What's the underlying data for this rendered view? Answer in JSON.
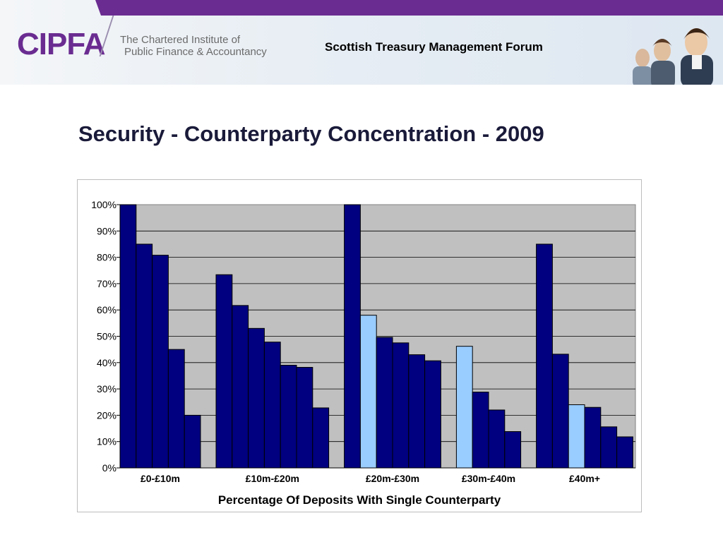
{
  "header": {
    "logo": "CIPFA",
    "org_line1": "The Chartered Institute of",
    "org_line2": "Public Finance & Accountancy",
    "forum_title": "Scottish Treasury Management Forum"
  },
  "slide": {
    "title": "Security  -  Counterparty Concentration - 2009"
  },
  "colors": {
    "brand_purple": "#6a2c91",
    "bar_dark": "#000080",
    "bar_light": "#99ccff",
    "plot_bg": "#c0c0c0"
  },
  "chart_data": {
    "type": "bar",
    "title": "",
    "xlabel": "Percentage Of Deposits With Single Counterparty",
    "ylabel": "",
    "ylim": [
      0,
      100
    ],
    "yticks": [
      "0%",
      "10%",
      "20%",
      "30%",
      "40%",
      "50%",
      "60%",
      "70%",
      "80%",
      "90%",
      "100%"
    ],
    "grid": true,
    "groups": [
      {
        "label": "£0-£10m",
        "values": [
          100,
          85,
          80.8,
          45,
          20
        ],
        "highlight": []
      },
      {
        "label": "£10m-£20m",
        "values": [
          73.4,
          61.7,
          53,
          47.8,
          39,
          38.2,
          22.8
        ],
        "highlight": []
      },
      {
        "label": "£20m-£30m",
        "values": [
          100,
          58,
          49.6,
          47.5,
          43,
          40.7
        ],
        "highlight": [
          1
        ]
      },
      {
        "label": "£30m-£40m",
        "values": [
          46.2,
          28.8,
          22,
          13.8
        ],
        "highlight": [
          0
        ]
      },
      {
        "label": "£40m+",
        "values": [
          85,
          43.2,
          24,
          23,
          15.6,
          11.8
        ],
        "highlight": [
          2
        ]
      }
    ]
  }
}
